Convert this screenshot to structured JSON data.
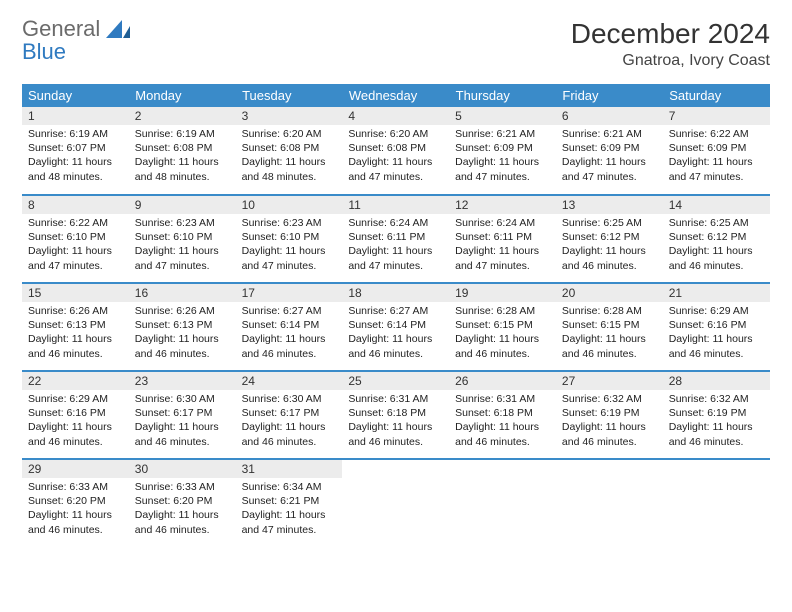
{
  "logo": {
    "text1": "General",
    "text2": "Blue"
  },
  "title": "December 2024",
  "location": "Gnatroa, Ivory Coast",
  "header_color": "#3a8bc9",
  "daynum_bg": "#ececec",
  "border_color": "#3a8bc9",
  "weekdays": [
    "Sunday",
    "Monday",
    "Tuesday",
    "Wednesday",
    "Thursday",
    "Friday",
    "Saturday"
  ],
  "days": [
    {
      "n": "1",
      "sr": "Sunrise: 6:19 AM",
      "ss": "Sunset: 6:07 PM",
      "dl": "Daylight: 11 hours and 48 minutes."
    },
    {
      "n": "2",
      "sr": "Sunrise: 6:19 AM",
      "ss": "Sunset: 6:08 PM",
      "dl": "Daylight: 11 hours and 48 minutes."
    },
    {
      "n": "3",
      "sr": "Sunrise: 6:20 AM",
      "ss": "Sunset: 6:08 PM",
      "dl": "Daylight: 11 hours and 48 minutes."
    },
    {
      "n": "4",
      "sr": "Sunrise: 6:20 AM",
      "ss": "Sunset: 6:08 PM",
      "dl": "Daylight: 11 hours and 47 minutes."
    },
    {
      "n": "5",
      "sr": "Sunrise: 6:21 AM",
      "ss": "Sunset: 6:09 PM",
      "dl": "Daylight: 11 hours and 47 minutes."
    },
    {
      "n": "6",
      "sr": "Sunrise: 6:21 AM",
      "ss": "Sunset: 6:09 PM",
      "dl": "Daylight: 11 hours and 47 minutes."
    },
    {
      "n": "7",
      "sr": "Sunrise: 6:22 AM",
      "ss": "Sunset: 6:09 PM",
      "dl": "Daylight: 11 hours and 47 minutes."
    },
    {
      "n": "8",
      "sr": "Sunrise: 6:22 AM",
      "ss": "Sunset: 6:10 PM",
      "dl": "Daylight: 11 hours and 47 minutes."
    },
    {
      "n": "9",
      "sr": "Sunrise: 6:23 AM",
      "ss": "Sunset: 6:10 PM",
      "dl": "Daylight: 11 hours and 47 minutes."
    },
    {
      "n": "10",
      "sr": "Sunrise: 6:23 AM",
      "ss": "Sunset: 6:10 PM",
      "dl": "Daylight: 11 hours and 47 minutes."
    },
    {
      "n": "11",
      "sr": "Sunrise: 6:24 AM",
      "ss": "Sunset: 6:11 PM",
      "dl": "Daylight: 11 hours and 47 minutes."
    },
    {
      "n": "12",
      "sr": "Sunrise: 6:24 AM",
      "ss": "Sunset: 6:11 PM",
      "dl": "Daylight: 11 hours and 47 minutes."
    },
    {
      "n": "13",
      "sr": "Sunrise: 6:25 AM",
      "ss": "Sunset: 6:12 PM",
      "dl": "Daylight: 11 hours and 46 minutes."
    },
    {
      "n": "14",
      "sr": "Sunrise: 6:25 AM",
      "ss": "Sunset: 6:12 PM",
      "dl": "Daylight: 11 hours and 46 minutes."
    },
    {
      "n": "15",
      "sr": "Sunrise: 6:26 AM",
      "ss": "Sunset: 6:13 PM",
      "dl": "Daylight: 11 hours and 46 minutes."
    },
    {
      "n": "16",
      "sr": "Sunrise: 6:26 AM",
      "ss": "Sunset: 6:13 PM",
      "dl": "Daylight: 11 hours and 46 minutes."
    },
    {
      "n": "17",
      "sr": "Sunrise: 6:27 AM",
      "ss": "Sunset: 6:14 PM",
      "dl": "Daylight: 11 hours and 46 minutes."
    },
    {
      "n": "18",
      "sr": "Sunrise: 6:27 AM",
      "ss": "Sunset: 6:14 PM",
      "dl": "Daylight: 11 hours and 46 minutes."
    },
    {
      "n": "19",
      "sr": "Sunrise: 6:28 AM",
      "ss": "Sunset: 6:15 PM",
      "dl": "Daylight: 11 hours and 46 minutes."
    },
    {
      "n": "20",
      "sr": "Sunrise: 6:28 AM",
      "ss": "Sunset: 6:15 PM",
      "dl": "Daylight: 11 hours and 46 minutes."
    },
    {
      "n": "21",
      "sr": "Sunrise: 6:29 AM",
      "ss": "Sunset: 6:16 PM",
      "dl": "Daylight: 11 hours and 46 minutes."
    },
    {
      "n": "22",
      "sr": "Sunrise: 6:29 AM",
      "ss": "Sunset: 6:16 PM",
      "dl": "Daylight: 11 hours and 46 minutes."
    },
    {
      "n": "23",
      "sr": "Sunrise: 6:30 AM",
      "ss": "Sunset: 6:17 PM",
      "dl": "Daylight: 11 hours and 46 minutes."
    },
    {
      "n": "24",
      "sr": "Sunrise: 6:30 AM",
      "ss": "Sunset: 6:17 PM",
      "dl": "Daylight: 11 hours and 46 minutes."
    },
    {
      "n": "25",
      "sr": "Sunrise: 6:31 AM",
      "ss": "Sunset: 6:18 PM",
      "dl": "Daylight: 11 hours and 46 minutes."
    },
    {
      "n": "26",
      "sr": "Sunrise: 6:31 AM",
      "ss": "Sunset: 6:18 PM",
      "dl": "Daylight: 11 hours and 46 minutes."
    },
    {
      "n": "27",
      "sr": "Sunrise: 6:32 AM",
      "ss": "Sunset: 6:19 PM",
      "dl": "Daylight: 11 hours and 46 minutes."
    },
    {
      "n": "28",
      "sr": "Sunrise: 6:32 AM",
      "ss": "Sunset: 6:19 PM",
      "dl": "Daylight: 11 hours and 46 minutes."
    },
    {
      "n": "29",
      "sr": "Sunrise: 6:33 AM",
      "ss": "Sunset: 6:20 PM",
      "dl": "Daylight: 11 hours and 46 minutes."
    },
    {
      "n": "30",
      "sr": "Sunrise: 6:33 AM",
      "ss": "Sunset: 6:20 PM",
      "dl": "Daylight: 11 hours and 46 minutes."
    },
    {
      "n": "31",
      "sr": "Sunrise: 6:34 AM",
      "ss": "Sunset: 6:21 PM",
      "dl": "Daylight: 11 hours and 47 minutes."
    }
  ]
}
